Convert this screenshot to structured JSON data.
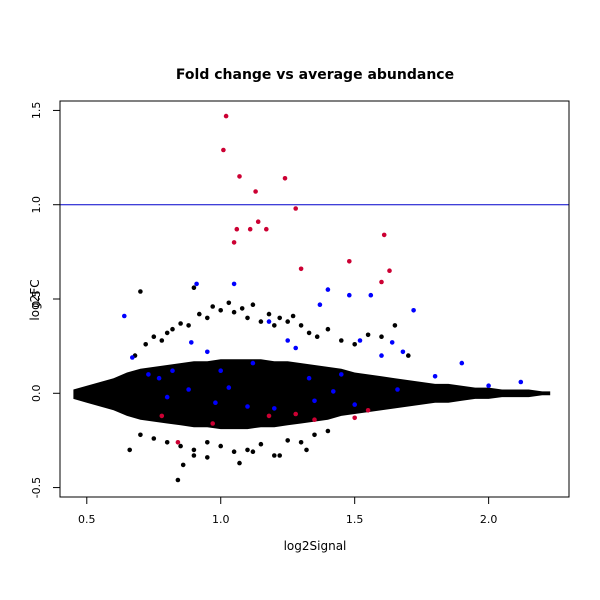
{
  "chart_data": {
    "type": "scatter",
    "title": "Fold change vs average abundance",
    "xlabel": "log2Signal",
    "ylabel": "log2FC",
    "xlim": [
      0.4,
      2.3
    ],
    "ylim": [
      -0.55,
      1.55
    ],
    "x_ticks": [
      0.5,
      1.0,
      1.5,
      2.0
    ],
    "x_tick_labels": [
      "0.5",
      "1.0",
      "1.5",
      "2.0"
    ],
    "y_ticks": [
      -0.5,
      0.0,
      0.5,
      1.0,
      1.5
    ],
    "y_tick_labels": [
      "-0.5",
      "0.0",
      "0.5",
      "1.0",
      "1.5"
    ],
    "hline": {
      "y": 1.0,
      "color": "#0000cc"
    },
    "grid": false,
    "legend": "none",
    "colors": {
      "background": "#000000",
      "highlighted": "#0000ff",
      "significant": "#cc0033"
    },
    "series": [
      {
        "role": "background",
        "color": "#000000",
        "x": [
          0.66,
          0.68,
          0.7,
          0.72,
          0.75,
          0.78,
          0.8,
          0.82,
          0.85,
          0.88,
          0.9,
          0.92,
          0.95,
          0.97,
          1.0,
          1.03,
          1.05,
          1.08,
          1.1,
          1.12,
          1.15,
          1.18,
          1.2,
          1.22,
          1.25,
          1.27,
          1.3,
          1.33,
          1.36,
          1.4,
          1.45,
          1.5,
          1.55,
          1.6,
          1.65,
          1.7,
          0.7,
          0.75,
          0.8,
          0.85,
          0.9,
          0.95,
          1.0,
          1.05,
          1.1,
          1.15,
          1.2,
          1.25,
          1.3,
          1.35,
          0.84,
          0.86,
          0.9,
          0.95,
          1.07,
          1.12,
          1.22,
          1.32,
          1.4
        ],
        "y": [
          -0.3,
          0.2,
          0.54,
          0.26,
          0.3,
          0.28,
          0.32,
          0.34,
          0.37,
          0.36,
          0.56,
          0.42,
          0.4,
          0.46,
          0.44,
          0.48,
          0.43,
          0.45,
          0.4,
          0.47,
          0.38,
          0.42,
          0.36,
          0.4,
          0.38,
          0.41,
          0.36,
          0.32,
          0.3,
          0.34,
          0.28,
          0.26,
          0.31,
          0.3,
          0.36,
          0.2,
          -0.22,
          -0.24,
          -0.26,
          -0.28,
          -0.3,
          -0.26,
          -0.28,
          -0.31,
          -0.3,
          -0.27,
          -0.33,
          -0.25,
          -0.26,
          -0.22,
          -0.46,
          -0.38,
          -0.33,
          -0.34,
          -0.37,
          -0.31,
          -0.33,
          -0.3,
          -0.2
        ]
      },
      {
        "role": "highlighted",
        "color": "#0000ff",
        "x": [
          0.64,
          0.67,
          0.73,
          0.77,
          0.82,
          0.89,
          0.91,
          0.95,
          1.0,
          1.05,
          1.12,
          1.18,
          1.25,
          1.28,
          1.33,
          1.37,
          1.4,
          1.45,
          1.48,
          1.52,
          1.56,
          1.6,
          1.64,
          1.68,
          1.72,
          1.8,
          1.9,
          2.0,
          2.12,
          1.1,
          0.98,
          0.8,
          1.2,
          1.5,
          1.35,
          0.88,
          1.42,
          1.66,
          1.03
        ],
        "y": [
          0.41,
          0.19,
          0.1,
          0.08,
          0.12,
          0.27,
          0.58,
          0.22,
          0.12,
          0.58,
          0.16,
          0.38,
          0.28,
          0.24,
          0.08,
          0.47,
          0.55,
          0.1,
          0.52,
          0.28,
          0.52,
          0.2,
          0.27,
          0.22,
          0.44,
          0.09,
          0.16,
          0.04,
          0.06,
          -0.07,
          -0.05,
          -0.02,
          -0.08,
          -0.06,
          -0.04,
          0.02,
          0.01,
          0.02,
          0.03
        ]
      },
      {
        "role": "significant",
        "color": "#cc0033",
        "x": [
          1.02,
          1.01,
          1.07,
          1.13,
          1.24,
          1.28,
          1.14,
          1.06,
          1.11,
          1.17,
          1.05,
          1.3,
          1.61,
          1.48,
          1.63,
          1.6,
          0.78,
          0.84,
          0.97,
          1.18,
          1.28,
          1.35,
          1.5,
          1.55
        ],
        "y": [
          1.47,
          1.29,
          1.15,
          1.07,
          1.14,
          0.98,
          0.91,
          0.87,
          0.87,
          0.87,
          0.8,
          0.66,
          0.84,
          0.7,
          0.65,
          0.59,
          -0.12,
          -0.26,
          -0.16,
          -0.12,
          -0.11,
          -0.14,
          -0.13,
          -0.09
        ]
      }
    ],
    "density_band": {
      "x": [
        0.45,
        0.5,
        0.55,
        0.6,
        0.65,
        0.7,
        0.75,
        0.8,
        0.85,
        0.9,
        0.95,
        1.0,
        1.05,
        1.1,
        1.15,
        1.2,
        1.25,
        1.3,
        1.35,
        1.4,
        1.45,
        1.5,
        1.55,
        1.6,
        1.65,
        1.7,
        1.75,
        1.8,
        1.85,
        1.9,
        1.95,
        2.0,
        2.05,
        2.1,
        2.15,
        2.2,
        2.23
      ],
      "upper": [
        0.02,
        0.04,
        0.06,
        0.08,
        0.11,
        0.13,
        0.14,
        0.15,
        0.16,
        0.17,
        0.17,
        0.18,
        0.18,
        0.18,
        0.18,
        0.17,
        0.17,
        0.16,
        0.15,
        0.14,
        0.13,
        0.11,
        0.1,
        0.09,
        0.08,
        0.07,
        0.06,
        0.05,
        0.05,
        0.04,
        0.03,
        0.03,
        0.02,
        0.02,
        0.02,
        0.01,
        0.01
      ],
      "lower": [
        -0.03,
        -0.05,
        -0.07,
        -0.09,
        -0.12,
        -0.14,
        -0.15,
        -0.16,
        -0.17,
        -0.18,
        -0.18,
        -0.19,
        -0.19,
        -0.19,
        -0.18,
        -0.18,
        -0.17,
        -0.16,
        -0.15,
        -0.14,
        -0.12,
        -0.11,
        -0.1,
        -0.09,
        -0.08,
        -0.07,
        -0.06,
        -0.05,
        -0.05,
        -0.04,
        -0.03,
        -0.03,
        -0.02,
        -0.02,
        -0.02,
        -0.01,
        -0.01
      ]
    }
  }
}
